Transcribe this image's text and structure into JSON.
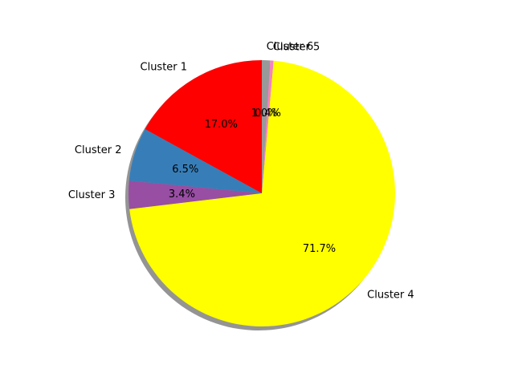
{
  "chart_data": {
    "type": "pie",
    "title": "",
    "shadow": true,
    "start_angle_deg": 90,
    "direction": "counterclockwise",
    "legend": "none",
    "slices": [
      {
        "label": "Cluster 1",
        "pct_label": "17.0%",
        "value": 17.0,
        "color": "#ff0000"
      },
      {
        "label": "Cluster 2",
        "pct_label": "6.5%",
        "value": 6.5,
        "color": "#377eb8"
      },
      {
        "label": "Cluster 3",
        "pct_label": "3.4%",
        "value": 3.4,
        "color": "#984ea3"
      },
      {
        "label": "Cluster 4",
        "pct_label": "71.7%",
        "value": 71.7,
        "color": "#ffff00"
      },
      {
        "label": "Cluster 5",
        "pct_label": "0.4%",
        "value": 0.4,
        "color": "#f781bf"
      },
      {
        "label": "Cluster 6",
        "pct_label": "1.0%",
        "value": 1.0,
        "color": "#999999"
      }
    ]
  }
}
